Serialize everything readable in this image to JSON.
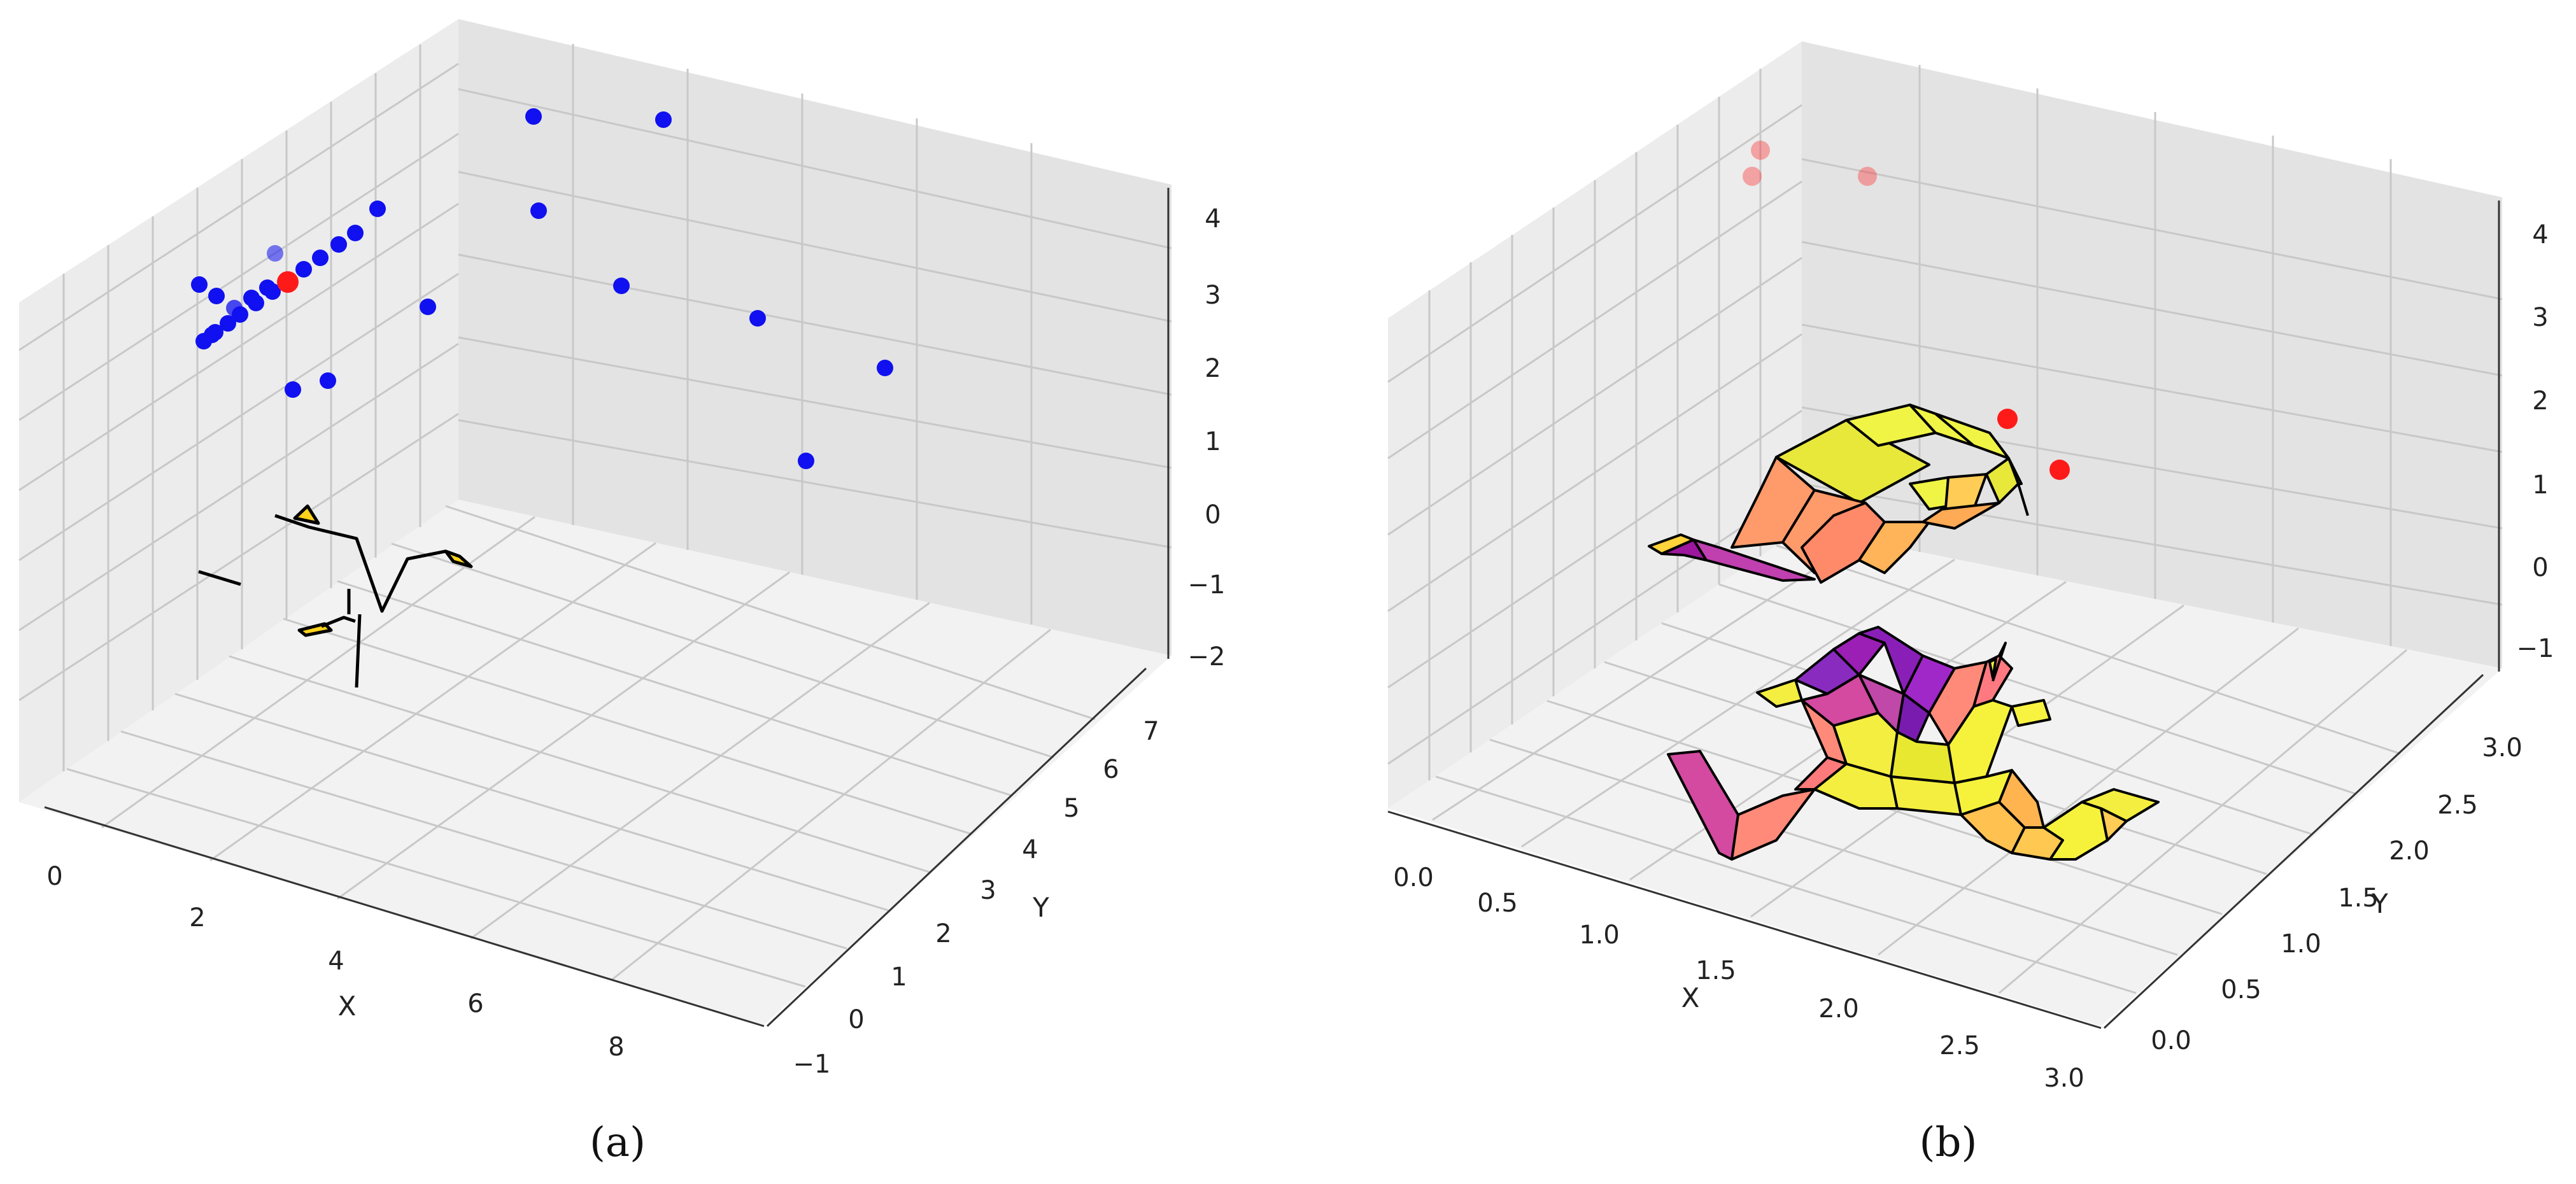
{
  "chart_data": [
    {
      "type": "scatter3d",
      "caption": "(a)",
      "xlabel": "X",
      "ylabel": "Y",
      "x_ticks": [
        "0",
        "2",
        "4",
        "6",
        "8"
      ],
      "y_ticks": [
        "−1",
        "0",
        "1",
        "2",
        "3",
        "4",
        "5",
        "6",
        "7"
      ],
      "z_ticks": [
        "4",
        "3",
        "2",
        "1",
        "0",
        "−1",
        "−2"
      ],
      "colors": {
        "points": "#0000ff",
        "highlight": "#ff0000",
        "surface_edge": "#000000",
        "surface_fill": "#ffd700"
      }
    },
    {
      "type": "surface3d",
      "caption": "(b)",
      "xlabel": "X",
      "ylabel": "Y",
      "x_ticks": [
        "0.0",
        "0.5",
        "1.0",
        "1.5",
        "2.0",
        "2.5",
        "3.0"
      ],
      "y_ticks": [
        "0.0",
        "0.5",
        "1.0",
        "1.5",
        "2.0",
        "2.5",
        "3.0"
      ],
      "z_ticks": [
        "4",
        "3",
        "2",
        "1",
        "0",
        "−1"
      ],
      "colors": {
        "points": "#ff0000",
        "colormap": [
          "#0d0887",
          "#9c179e",
          "#ed7953",
          "#fdb42f",
          "#f0f921"
        ]
      }
    }
  ]
}
